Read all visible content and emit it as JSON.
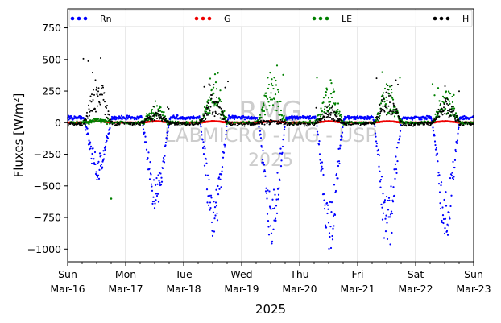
{
  "chart_data": {
    "type": "scatter",
    "xlabel": "2025",
    "ylabel": "Fluxes [W/m²]",
    "ylim": [
      -1100,
      900
    ],
    "yticks": [
      -1000,
      -750,
      -500,
      -250,
      0,
      250,
      500,
      750
    ],
    "xlim": [
      "2025-03-16",
      "2025-03-23"
    ],
    "x_ticks": [
      {
        "day": "Sun",
        "date": "Mar-16"
      },
      {
        "day": "Mon",
        "date": "Mar-17"
      },
      {
        "day": "Tue",
        "date": "Mar-18"
      },
      {
        "day": "Wed",
        "date": "Mar-19"
      },
      {
        "day": "Thu",
        "date": "Mar-20"
      },
      {
        "day": "Fri",
        "date": "Mar-21"
      },
      {
        "day": "Sat",
        "date": "Mar-22"
      },
      {
        "day": "Sun",
        "date": "Mar-23"
      }
    ],
    "grid": "vertical",
    "legend_position": "top",
    "watermark": [
      "RMG",
      "LABMICRO - IAG - USP",
      "2025"
    ],
    "series": [
      {
        "name": "Rn",
        "color": "#0000ff",
        "daily_minimum": [
          -450,
          -720,
          -950,
          -960,
          -1010,
          -1020,
          -960
        ],
        "night_value": 40
      },
      {
        "name": "G",
        "color": "#ee0000",
        "range": [
          -5,
          15
        ]
      },
      {
        "name": "LE",
        "color": "#008000",
        "daily_maximum": [
          30,
          180,
          400,
          520,
          410,
          400,
          360
        ],
        "outliers": [
          {
            "time": "2025-03-16T18:00",
            "value": -600
          }
        ]
      },
      {
        "name": "H",
        "color": "#000000",
        "daily_maximum": [
          550,
          130,
          330,
          10,
          160,
          390,
          290
        ]
      }
    ]
  }
}
